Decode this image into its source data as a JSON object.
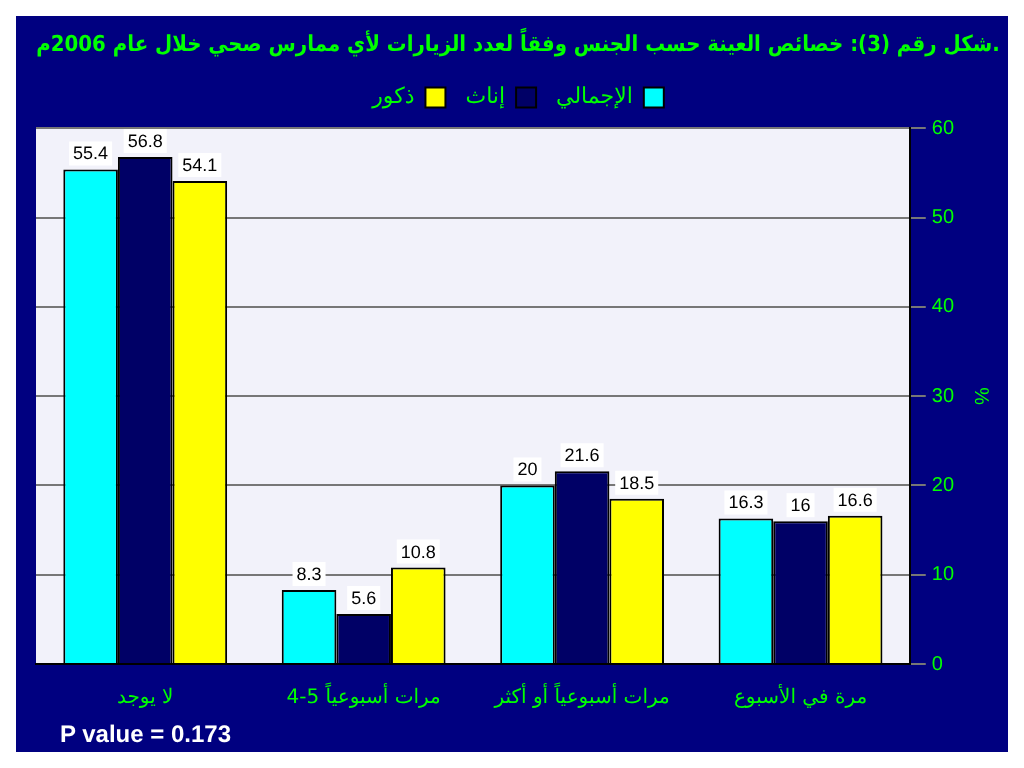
{
  "chart_data": {
    "type": "bar",
    "title": "شكل رقم (3): خصائص العينة حسب الجنس وفقاً لعدد الزيارات لأي ممارس صحي خلال عام 2006م.",
    "ylabel": "%",
    "categories": [
      "لا يوجد",
      "4-5 مرات أسبوعياً",
      "مرات أسبوعياً أو أكثر",
      "مرة في الأسبوع"
    ],
    "series": [
      {
        "name": "الإجمالي",
        "color": "#00ffff",
        "values": [
          55.4,
          8.3,
          20,
          16.3
        ]
      },
      {
        "name": "إناث",
        "color": "#000066",
        "values": [
          56.8,
          5.6,
          21.6,
          16
        ]
      },
      {
        "name": "ذكور",
        "color": "#ffff00",
        "values": [
          54.1,
          10.8,
          18.5,
          16.6
        ]
      }
    ],
    "ylim": [
      0,
      60
    ],
    "yticks": [
      0,
      10,
      20,
      30,
      40,
      50,
      60
    ],
    "grid": "y",
    "legend": "top",
    "data_labels": true,
    "annotations": [
      "P value = 0.173"
    ]
  }
}
